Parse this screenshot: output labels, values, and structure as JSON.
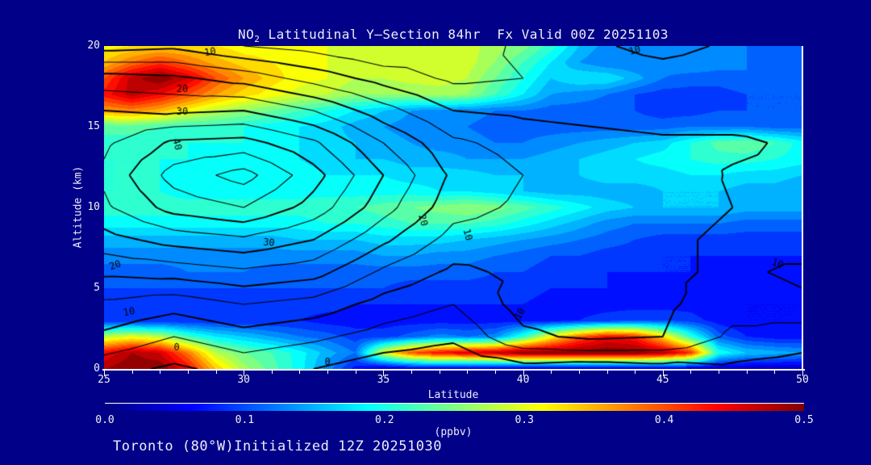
{
  "title": {
    "prefix": "NO",
    "sub": "2",
    "rest": " Latitudinal Y–Section 84hr  Fx Valid 00Z 20251103"
  },
  "footer": "Toronto (80°W)Initialized 12Z 20251030",
  "colors": {
    "background": "#000089",
    "text": "#EDEDF7",
    "axis": "#FFFFFF",
    "contour_line": "#000000",
    "colormap": "jet",
    "colormap_ends": [
      "#000080",
      "#800000"
    ]
  },
  "axes": {
    "x": {
      "label": "Latitude",
      "min": 25,
      "max": 50,
      "major_ticks": [
        25,
        30,
        35,
        40,
        45,
        50
      ],
      "minor_step": 1
    },
    "y": {
      "label": "Altitude (km)",
      "min": 0,
      "max": 20,
      "major_ticks": [
        0,
        5,
        10,
        15,
        20
      ]
    }
  },
  "colorbar": {
    "tick_labels": [
      "0.0",
      "0.1",
      "0.2",
      "0.3",
      "0.4",
      "0.5"
    ],
    "units_label": "(ppbv)",
    "min": 0.0,
    "max": 0.5
  },
  "chart_data": {
    "type": "heatmap",
    "title": "NO2 Latitudinal Y-Section 84hr Fx Valid 00Z 20251103",
    "xlabel": "Latitude",
    "ylabel": "Altitude (km)",
    "x_range": [
      25,
      50
    ],
    "y_range": [
      0,
      20
    ],
    "fill_units": "ppbv",
    "fill_range": [
      0,
      0.5
    ],
    "fill_level_step": 0.02,
    "fill_lats": [
      25,
      26,
      27,
      28,
      29,
      30,
      31,
      32,
      33,
      34,
      35,
      36,
      37,
      38,
      39,
      40,
      41,
      42,
      43,
      44,
      45,
      46,
      47,
      48,
      49,
      50
    ],
    "fill_alts": [
      20,
      19,
      18,
      17,
      16,
      15,
      14,
      13,
      12,
      11,
      10,
      9,
      8,
      7,
      6,
      5,
      4,
      3,
      2,
      1,
      0
    ],
    "fill_values": [
      [
        0.31,
        0.32,
        0.33,
        0.33,
        0.32,
        0.31,
        0.31,
        0.3,
        0.3,
        0.29,
        0.28,
        0.29,
        0.3,
        0.29,
        0.27,
        0.25,
        0.21,
        0.16,
        0.13,
        0.12,
        0.12,
        0.13,
        0.13,
        0.12,
        0.11,
        0.11
      ],
      [
        0.34,
        0.38,
        0.41,
        0.38,
        0.35,
        0.33,
        0.32,
        0.31,
        0.3,
        0.29,
        0.29,
        0.3,
        0.3,
        0.29,
        0.26,
        0.22,
        0.18,
        0.14,
        0.12,
        0.12,
        0.13,
        0.14,
        0.13,
        0.12,
        0.11,
        0.11
      ],
      [
        0.4,
        0.47,
        0.5,
        0.46,
        0.4,
        0.36,
        0.33,
        0.31,
        0.3,
        0.28,
        0.28,
        0.29,
        0.29,
        0.28,
        0.24,
        0.2,
        0.16,
        0.18,
        0.18,
        0.15,
        0.12,
        0.11,
        0.11,
        0.12,
        0.12,
        0.11
      ],
      [
        0.43,
        0.47,
        0.44,
        0.4,
        0.36,
        0.33,
        0.31,
        0.29,
        0.28,
        0.26,
        0.26,
        0.26,
        0.27,
        0.26,
        0.22,
        0.18,
        0.14,
        0.13,
        0.12,
        0.1,
        0.09,
        0.09,
        0.09,
        0.1,
        0.1,
        0.1
      ],
      [
        0.36,
        0.37,
        0.35,
        0.31,
        0.28,
        0.26,
        0.24,
        0.22,
        0.2,
        0.18,
        0.16,
        0.14,
        0.13,
        0.13,
        0.12,
        0.12,
        0.11,
        0.11,
        0.11,
        0.1,
        0.09,
        0.09,
        0.1,
        0.1,
        0.1,
        0.1
      ],
      [
        0.23,
        0.23,
        0.22,
        0.21,
        0.21,
        0.2,
        0.19,
        0.18,
        0.17,
        0.15,
        0.14,
        0.13,
        0.12,
        0.12,
        0.11,
        0.11,
        0.11,
        0.11,
        0.11,
        0.11,
        0.11,
        0.12,
        0.12,
        0.12,
        0.11,
        0.11
      ],
      [
        0.21,
        0.21,
        0.21,
        0.2,
        0.2,
        0.2,
        0.19,
        0.18,
        0.17,
        0.16,
        0.15,
        0.14,
        0.13,
        0.13,
        0.12,
        0.12,
        0.13,
        0.14,
        0.15,
        0.16,
        0.17,
        0.2,
        0.23,
        0.24,
        0.22,
        0.19
      ],
      [
        0.2,
        0.2,
        0.2,
        0.2,
        0.19,
        0.19,
        0.19,
        0.18,
        0.17,
        0.16,
        0.16,
        0.15,
        0.15,
        0.14,
        0.14,
        0.14,
        0.15,
        0.16,
        0.17,
        0.18,
        0.19,
        0.2,
        0.21,
        0.21,
        0.2,
        0.19
      ],
      [
        0.2,
        0.2,
        0.2,
        0.19,
        0.19,
        0.19,
        0.19,
        0.19,
        0.18,
        0.18,
        0.18,
        0.17,
        0.17,
        0.17,
        0.16,
        0.16,
        0.16,
        0.16,
        0.17,
        0.17,
        0.17,
        0.18,
        0.18,
        0.17,
        0.17,
        0.16
      ],
      [
        0.2,
        0.2,
        0.2,
        0.19,
        0.19,
        0.19,
        0.19,
        0.19,
        0.19,
        0.19,
        0.19,
        0.19,
        0.18,
        0.18,
        0.17,
        0.16,
        0.15,
        0.15,
        0.15,
        0.15,
        0.16,
        0.16,
        0.16,
        0.15,
        0.15,
        0.14
      ],
      [
        0.21,
        0.21,
        0.21,
        0.21,
        0.21,
        0.21,
        0.21,
        0.21,
        0.22,
        0.22,
        0.23,
        0.24,
        0.25,
        0.26,
        0.25,
        0.23,
        0.21,
        0.19,
        0.17,
        0.16,
        0.16,
        0.16,
        0.16,
        0.15,
        0.15,
        0.15
      ],
      [
        0.19,
        0.19,
        0.19,
        0.19,
        0.19,
        0.19,
        0.19,
        0.19,
        0.2,
        0.2,
        0.21,
        0.22,
        0.22,
        0.22,
        0.21,
        0.19,
        0.17,
        0.15,
        0.13,
        0.12,
        0.12,
        0.12,
        0.12,
        0.11,
        0.11,
        0.11
      ],
      [
        0.15,
        0.15,
        0.15,
        0.15,
        0.15,
        0.15,
        0.15,
        0.16,
        0.16,
        0.16,
        0.17,
        0.17,
        0.17,
        0.16,
        0.15,
        0.14,
        0.13,
        0.12,
        0.11,
        0.1,
        0.09,
        0.09,
        0.09,
        0.09,
        0.09,
        0.09
      ],
      [
        0.13,
        0.13,
        0.13,
        0.13,
        0.13,
        0.13,
        0.13,
        0.13,
        0.13,
        0.13,
        0.14,
        0.14,
        0.13,
        0.13,
        0.12,
        0.11,
        0.1,
        0.1,
        0.09,
        0.09,
        0.08,
        0.08,
        0.08,
        0.08,
        0.08,
        0.08
      ],
      [
        0.11,
        0.11,
        0.11,
        0.12,
        0.12,
        0.12,
        0.11,
        0.11,
        0.11,
        0.11,
        0.11,
        0.11,
        0.11,
        0.11,
        0.1,
        0.1,
        0.09,
        0.09,
        0.08,
        0.08,
        0.08,
        0.08,
        0.07,
        0.07,
        0.07,
        0.07
      ],
      [
        0.1,
        0.1,
        0.1,
        0.1,
        0.1,
        0.1,
        0.1,
        0.1,
        0.1,
        0.1,
        0.1,
        0.09,
        0.09,
        0.09,
        0.09,
        0.09,
        0.08,
        0.08,
        0.08,
        0.07,
        0.07,
        0.07,
        0.07,
        0.07,
        0.07,
        0.07
      ],
      [
        0.09,
        0.09,
        0.09,
        0.09,
        0.09,
        0.09,
        0.09,
        0.09,
        0.09,
        0.08,
        0.08,
        0.08,
        0.08,
        0.08,
        0.08,
        0.08,
        0.07,
        0.07,
        0.07,
        0.07,
        0.07,
        0.07,
        0.06,
        0.06,
        0.06,
        0.06
      ],
      [
        0.08,
        0.08,
        0.08,
        0.08,
        0.08,
        0.08,
        0.08,
        0.08,
        0.07,
        0.07,
        0.07,
        0.07,
        0.07,
        0.07,
        0.07,
        0.07,
        0.07,
        0.08,
        0.09,
        0.1,
        0.1,
        0.09,
        0.07,
        0.06,
        0.06,
        0.06
      ],
      [
        0.28,
        0.3,
        0.28,
        0.22,
        0.18,
        0.16,
        0.14,
        0.12,
        0.11,
        0.09,
        0.09,
        0.11,
        0.13,
        0.12,
        0.13,
        0.21,
        0.31,
        0.39,
        0.44,
        0.42,
        0.33,
        0.21,
        0.11,
        0.08,
        0.07,
        0.07
      ],
      [
        0.44,
        0.48,
        0.46,
        0.38,
        0.28,
        0.24,
        0.22,
        0.19,
        0.15,
        0.12,
        0.3,
        0.4,
        0.44,
        0.46,
        0.47,
        0.5,
        0.5,
        0.5,
        0.5,
        0.5,
        0.48,
        0.42,
        0.2,
        0.16,
        0.15,
        0.14
      ],
      [
        0.48,
        0.5,
        0.5,
        0.44,
        0.34,
        0.27,
        0.23,
        0.19,
        0.13,
        0.07,
        0.03,
        0.04,
        0.04,
        0.03,
        0.03,
        0.03,
        0.03,
        0.03,
        0.03,
        0.03,
        0.03,
        0.03,
        0.03,
        0.03,
        0.03,
        0.03
      ]
    ],
    "contour_lats": [
      25,
      27.5,
      30,
      32.5,
      35,
      37.5,
      40,
      42.5,
      45,
      47.5,
      50
    ],
    "contour_alts": [
      20,
      18,
      16,
      14,
      12,
      10,
      8,
      6,
      4,
      2,
      0
    ],
    "contour_values": [
      [
        8,
        9,
        5,
        3,
        0,
        2,
        6,
        9,
        12,
        9,
        7
      ],
      [
        22,
        21,
        18,
        13,
        8,
        4,
        5,
        6,
        7,
        6,
        6
      ],
      [
        30,
        29,
        30,
        25,
        17,
        10,
        9,
        8,
        7,
        7,
        7
      ],
      [
        34,
        41,
        42,
        36,
        25,
        16,
        13,
        12,
        11,
        11,
        9
      ],
      [
        36,
        47,
        52,
        42,
        30,
        19,
        15,
        14,
        13,
        9.5,
        9
      ],
      [
        34,
        42,
        45,
        38,
        27,
        17,
        14,
        13,
        12,
        10,
        8
      ],
      [
        28,
        32,
        34,
        30,
        21,
        13,
        12,
        12,
        11,
        9,
        7
      ],
      [
        21,
        22,
        24,
        22,
        14,
        9,
        11,
        12,
        11,
        9,
        11
      ],
      [
        14,
        12,
        15,
        13,
        8,
        5,
        12,
        13,
        11,
        7,
        9
      ],
      [
        9,
        5,
        8,
        6,
        3,
        1,
        9,
        11,
        10,
        4,
        2
      ],
      [
        2,
        -1,
        2,
        0,
        -3,
        -4,
        -2,
        -3,
        -2,
        -1,
        -2
      ]
    ],
    "contour_levels": [
      0,
      5,
      10,
      15,
      20,
      25,
      30,
      35,
      40,
      45,
      50
    ],
    "labeled_levels": [
      0,
      10,
      20,
      30,
      40
    ],
    "contour_labels": [
      {
        "t": "10",
        "lat": 28.8,
        "alt": 19.6,
        "rot": -10
      },
      {
        "t": "20",
        "lat": 27.8,
        "alt": 17.3,
        "rot": 0
      },
      {
        "t": "30",
        "lat": 27.8,
        "alt": 15.9,
        "rot": 0
      },
      {
        "t": "40",
        "lat": 27.6,
        "alt": 13.9,
        "rot": 75
      },
      {
        "t": "20",
        "lat": 36.4,
        "alt": 9.2,
        "rot": 75
      },
      {
        "t": "10",
        "lat": 38.0,
        "alt": 8.3,
        "rot": 75
      },
      {
        "t": "30",
        "lat": 30.9,
        "alt": 7.8,
        "rot": 5
      },
      {
        "t": "20",
        "lat": 25.4,
        "alt": 6.4,
        "rot": -20
      },
      {
        "t": "10",
        "lat": 25.9,
        "alt": 3.5,
        "rot": -10
      },
      {
        "t": "0",
        "lat": 27.6,
        "alt": 1.3,
        "rot": 0
      },
      {
        "t": "0",
        "lat": 33.0,
        "alt": 0.4,
        "rot": 0
      },
      {
        "t": "10",
        "lat": 39.9,
        "alt": 3.4,
        "rot": -60
      },
      {
        "t": "10",
        "lat": 44.0,
        "alt": 19.7,
        "rot": -15
      },
      {
        "t": "10",
        "lat": 49.1,
        "alt": 6.5,
        "rot": 20
      }
    ]
  }
}
